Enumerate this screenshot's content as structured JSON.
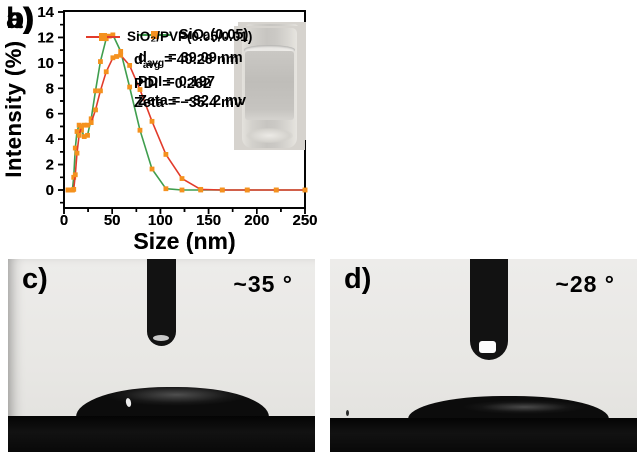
{
  "figure_title": "SiO2 nanoparticle DLS size distributions and contact-angle images",
  "chart_data": [
    {
      "type": "line",
      "panel_label": "a)",
      "legend": "SiO₂(0.05)",
      "xlabel": "Size (nm)",
      "ylabel": "Intensity (%)",
      "x_ticks": [
        0,
        50,
        100,
        150,
        200,
        250
      ],
      "y_ticks": [
        0,
        2,
        4,
        6,
        8,
        10,
        12,
        14
      ],
      "xlim": [
        0,
        250
      ],
      "ylim": [
        0,
        14
      ],
      "line_color": "#3f9e4e",
      "marker_color": "#f4911e",
      "stats": {
        "d_base": "d",
        "d_sub": "avg",
        "d_value": "= 39.09 nm",
        "pdi": "PDI = 0.197",
        "zeta": "Zeta = −32.2 mv"
      },
      "inset": "glass vial with clear colloidal liquid",
      "points": [
        [
          4.2,
          0
        ],
        [
          4.8,
          0
        ],
        [
          5.6,
          0
        ],
        [
          6.5,
          0
        ],
        [
          7.5,
          0
        ],
        [
          8.7,
          0
        ],
        [
          10.1,
          1.0
        ],
        [
          11.7,
          3.3
        ],
        [
          13.5,
          4.6
        ],
        [
          15.7,
          5.1
        ],
        [
          18.2,
          4.7
        ],
        [
          21.0,
          4.2
        ],
        [
          24.4,
          4.3
        ],
        [
          28.2,
          5.6
        ],
        [
          32.7,
          7.8
        ],
        [
          37.8,
          10.1
        ],
        [
          43.8,
          11.9
        ],
        [
          47.0,
          12.1
        ],
        [
          50.7,
          12.2
        ],
        [
          58.8,
          10.9
        ],
        [
          68.1,
          8.1
        ],
        [
          78.8,
          4.7
        ],
        [
          91.3,
          1.65
        ],
        [
          105.7,
          0.1
        ],
        [
          122.4,
          0
        ],
        [
          141.8,
          0
        ],
        [
          164.2,
          0
        ],
        [
          190.1,
          0
        ],
        [
          220.2,
          0
        ],
        [
          250,
          0
        ]
      ]
    },
    {
      "type": "line",
      "panel_label": "b)",
      "legend": "SiO₂/PVP(0.05/0.01)",
      "xlabel": "Size (nm)",
      "ylabel": "Intensity (%)",
      "x_ticks": [
        0,
        50,
        100,
        150,
        200,
        250
      ],
      "y_ticks": [
        0,
        2,
        4,
        6,
        8,
        10,
        12,
        14
      ],
      "xlim": [
        0,
        250
      ],
      "ylim": [
        0,
        14
      ],
      "line_color": "#e23b2b",
      "marker_color": "#f4911e",
      "stats": {
        "d_base": "d",
        "d_sub": "avg",
        "d_value": "= 40.26 nm",
        "pdi": "PDI = 0.262",
        "zeta": "Zeta = −35.4 mv"
      },
      "inset": "glass vial with clear colloidal liquid",
      "points": [
        [
          4.2,
          0
        ],
        [
          4.8,
          0
        ],
        [
          5.6,
          0
        ],
        [
          6.5,
          0
        ],
        [
          7.5,
          0
        ],
        [
          8.7,
          0
        ],
        [
          10.1,
          0.05
        ],
        [
          11.7,
          1.2
        ],
        [
          13.5,
          2.9
        ],
        [
          15.7,
          4.3
        ],
        [
          18.2,
          5.0
        ],
        [
          21.0,
          5.1
        ],
        [
          24.4,
          5.1
        ],
        [
          28.2,
          5.3
        ],
        [
          32.7,
          6.3
        ],
        [
          37.8,
          7.8
        ],
        [
          43.8,
          9.3
        ],
        [
          50.7,
          10.4
        ],
        [
          54.5,
          10.5
        ],
        [
          58.8,
          10.6
        ],
        [
          68.1,
          9.8
        ],
        [
          78.8,
          7.9
        ],
        [
          91.3,
          5.4
        ],
        [
          105.7,
          2.8
        ],
        [
          122.4,
          0.9
        ],
        [
          141.8,
          0.05
        ],
        [
          164.2,
          0
        ],
        [
          190.1,
          0
        ],
        [
          220.2,
          0
        ],
        [
          250,
          0
        ]
      ]
    }
  ],
  "photos": [
    {
      "label": "c)",
      "angle": "~35 °",
      "content": "sessile water droplet under dispensing needle on dark substrate"
    },
    {
      "label": "d)",
      "angle": "~28 °",
      "content": "sessile water droplet under dispensing needle on dark substrate"
    }
  ]
}
